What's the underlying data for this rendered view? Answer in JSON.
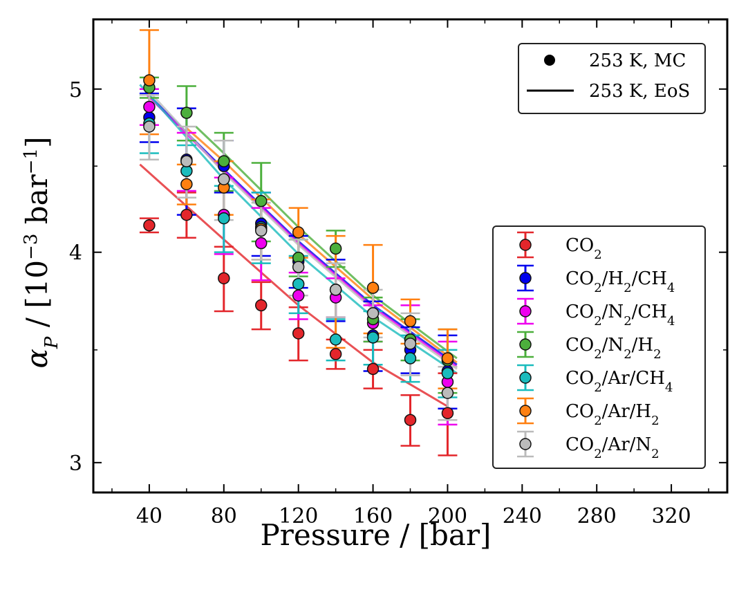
{
  "chart_data": {
    "type": "scatter",
    "xlabel": "Pressure / [bar]",
    "ylabel_math": "α_P / [10^-3 bar^-1]",
    "ylabel_parts": {
      "symbol": "α",
      "sub": "P",
      "text": " / [10",
      "exp": "−3",
      "unit": " bar",
      "unit_exp": "−1",
      "close": "]"
    },
    "xlim": [
      10,
      350
    ],
    "ylim": [
      2.88,
      5.5
    ],
    "y_scale": "log",
    "x_ticks": [
      40,
      80,
      120,
      160,
      200,
      240,
      280,
      320
    ],
    "x_tick_labels": [
      "40",
      "80",
      "120",
      "160",
      "200",
      "240",
      "280",
      "320"
    ],
    "y_ticks": [
      3,
      4,
      5
    ],
    "y_tick_labels": [
      "3",
      "4",
      "5"
    ],
    "grid": false,
    "style_legend": {
      "placement": "top-right",
      "entries": [
        {
          "label": "253 K, MC",
          "marker": "dot"
        },
        {
          "label": "253 K, EoS",
          "marker": "line"
        }
      ]
    },
    "series_legend": {
      "placement": "center-right",
      "entries": [
        {
          "base": "CO",
          "parts": [
            {
              "t": "CO"
            },
            {
              "s": "2"
            }
          ]
        },
        {
          "base": "CO2/H2/CH4",
          "parts": [
            {
              "t": "CO"
            },
            {
              "s": "2"
            },
            {
              "t": "/H"
            },
            {
              "s": "2"
            },
            {
              "t": "/CH"
            },
            {
              "s": "4"
            }
          ]
        },
        {
          "base": "CO2/N2/CH4",
          "parts": [
            {
              "t": "CO"
            },
            {
              "s": "2"
            },
            {
              "t": "/N"
            },
            {
              "s": "2"
            },
            {
              "t": "/CH"
            },
            {
              "s": "4"
            }
          ]
        },
        {
          "base": "CO2/N2/H2",
          "parts": [
            {
              "t": "CO"
            },
            {
              "s": "2"
            },
            {
              "t": "/N"
            },
            {
              "s": "2"
            },
            {
              "t": "/H"
            },
            {
              "s": "2"
            }
          ]
        },
        {
          "base": "CO2/Ar/CH4",
          "parts": [
            {
              "t": "CO"
            },
            {
              "s": "2"
            },
            {
              "t": "/Ar/CH"
            },
            {
              "s": "4"
            }
          ]
        },
        {
          "base": "CO2/Ar/H2",
          "parts": [
            {
              "t": "CO"
            },
            {
              "s": "2"
            },
            {
              "t": "/Ar/H"
            },
            {
              "s": "2"
            }
          ]
        },
        {
          "base": "CO2/Ar/N2",
          "parts": [
            {
              "t": "CO"
            },
            {
              "s": "2"
            },
            {
              "t": "/Ar/N"
            },
            {
              "s": "2"
            }
          ]
        }
      ]
    },
    "series": [
      {
        "color": "#e3262b",
        "x": [
          40,
          60,
          80,
          100,
          120,
          140,
          160,
          180,
          200
        ],
        "y": [
          4.15,
          4.21,
          3.86,
          3.72,
          3.58,
          3.48,
          3.41,
          3.18,
          3.21
        ],
        "err": [
          0.04,
          0.13,
          0.17,
          0.12,
          0.13,
          0.07,
          0.09,
          0.11,
          0.18
        ],
        "eos": {
          "x": [
            35,
            80,
            120,
            160,
            200
          ],
          "y": [
            4.51,
            4.07,
            3.72,
            3.44,
            3.24
          ]
        }
      },
      {
        "color": "#0000ee",
        "x": [
          40,
          60,
          80,
          100,
          120,
          140,
          160,
          180,
          200
        ],
        "y": [
          4.81,
          4.54,
          4.5,
          4.16,
          3.95,
          3.8,
          3.57,
          3.5,
          3.4
        ],
        "err": [
          0.16,
          0.33,
          0.16,
          0.18,
          0.14,
          0.16,
          0.17,
          0.11,
          0.17
        ],
        "eos": {
          "x": [
            38,
            80,
            120,
            160,
            205
          ],
          "y": [
            4.98,
            4.48,
            4.06,
            3.72,
            3.43
          ]
        }
      },
      {
        "color": "#ee00ee",
        "x": [
          40,
          60,
          80,
          100,
          120,
          140,
          160,
          180,
          200
        ],
        "y": [
          4.88,
          4.53,
          4.21,
          4.05,
          3.77,
          3.76,
          3.63,
          3.55,
          3.35
        ],
        "err": [
          0.12,
          0.18,
          0.22,
          0.2,
          0.12,
          0.1,
          0.09,
          0.17,
          0.19
        ],
        "eos": {
          "x": [
            38,
            80,
            120,
            160,
            205
          ],
          "y": [
            4.97,
            4.47,
            4.05,
            3.71,
            3.42
          ]
        }
      },
      {
        "color": "#4caf3c",
        "x": [
          40,
          60,
          80,
          100,
          120,
          140,
          160,
          180,
          200
        ],
        "y": [
          5.01,
          4.84,
          4.53,
          4.29,
          3.97,
          4.02,
          3.65,
          3.55,
          3.45
        ],
        "err": [
          0.07,
          0.18,
          0.18,
          0.23,
          0.1,
          0.1,
          0.11,
          0.1,
          0.15
        ],
        "eos": {
          "x": [
            65,
            80,
            120,
            160,
            205
          ],
          "y": [
            4.75,
            4.58,
            4.14,
            3.77,
            3.46
          ]
        }
      },
      {
        "color": "#1abcbd",
        "x": [
          40,
          60,
          80,
          100,
          120,
          140,
          160,
          180,
          200
        ],
        "y": [
          4.77,
          4.47,
          4.19,
          4.14,
          3.83,
          3.55,
          3.56,
          3.46,
          3.39
        ],
        "err": [
          0.19,
          0.16,
          0.19,
          0.2,
          0.15,
          0.1,
          0.13,
          0.11,
          0.11
        ],
        "eos": {
          "x": [
            35,
            80,
            120,
            160,
            205
          ],
          "y": [
            5.03,
            4.42,
            3.99,
            3.66,
            3.39
          ]
        }
      },
      {
        "color": "#ff8011",
        "x": [
          40,
          60,
          80,
          100,
          120,
          140,
          160,
          180,
          200
        ],
        "y": [
          5.06,
          4.39,
          4.37,
          4.13,
          4.11,
          3.8,
          3.81,
          3.64,
          3.46
        ],
        "err": [
          0.36,
          0.12,
          0.16,
          0.17,
          0.14,
          0.29,
          0.23,
          0.11,
          0.14
        ],
        "eos": {
          "x": [
            60,
            80,
            120,
            160,
            205
          ],
          "y": [
            4.74,
            4.53,
            4.1,
            3.75,
            3.44
          ]
        }
      },
      {
        "color": "#bbbbbb",
        "x": [
          40,
          60,
          80,
          100,
          120,
          140,
          160,
          180,
          200
        ],
        "y": [
          4.75,
          4.53,
          4.42,
          4.12,
          3.92,
          3.8,
          3.68,
          3.53,
          3.3
        ],
        "err": [
          0.21,
          0.22,
          0.24,
          0.16,
          0.15,
          0.14,
          0.12,
          0.15,
          0.12
        ],
        "eos": {
          "x": [
            38,
            80,
            120,
            160,
            205
          ],
          "y": [
            5.01,
            4.46,
            4.04,
            3.7,
            3.41
          ]
        }
      }
    ]
  }
}
